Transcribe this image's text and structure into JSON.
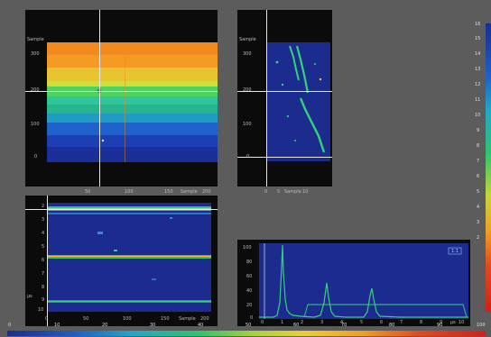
{
  "c_scan": {
    "y_ticks": [
      "300",
      "200",
      "100",
      "0"
    ],
    "y_unit": "Sample",
    "x_ticks": [
      "50",
      "100",
      "150",
      "200"
    ],
    "x_unit": "Sample"
  },
  "b_scan": {
    "y_ticks": [
      "300",
      "200",
      "100",
      "0"
    ],
    "y_unit": "Sample",
    "x_ticks": [
      "0",
      "5",
      "10"
    ],
    "x_unit": "Sample"
  },
  "d_scan": {
    "y_ticks": [
      "2",
      "3",
      "4",
      "5",
      "6",
      "7",
      "8",
      "9",
      "10"
    ],
    "y_unit": "μs",
    "x_ticks": [
      "0",
      "50",
      "100",
      "150",
      "200"
    ],
    "x_unit": "Sample"
  },
  "a_scan": {
    "y_ticks": [
      "100",
      "80",
      "60",
      "40",
      "20",
      "0"
    ],
    "x_ticks": [
      "0",
      "1",
      "2",
      "3",
      "4",
      "5",
      "6",
      "7",
      "8",
      "9",
      "10"
    ],
    "x_unit": "μs",
    "badge": "1:1"
  },
  "palette_v": {
    "ticks": [
      "16",
      "15",
      "14",
      "13",
      "12",
      "11",
      "10",
      "9",
      "8",
      "7",
      "6",
      "5",
      "4",
      "3",
      "2"
    ]
  },
  "palette_h": {
    "ticks": [
      "0",
      "10",
      "20",
      "30",
      "40",
      "50",
      "60",
      "70",
      "80",
      "90",
      "100"
    ]
  },
  "colors": {
    "background": "#5c5c5c",
    "panel": "#0b0b0b",
    "scan_navy": "#1c2c8e",
    "signal_green": "#33d27a",
    "cursor": "#e6e6e6"
  }
}
